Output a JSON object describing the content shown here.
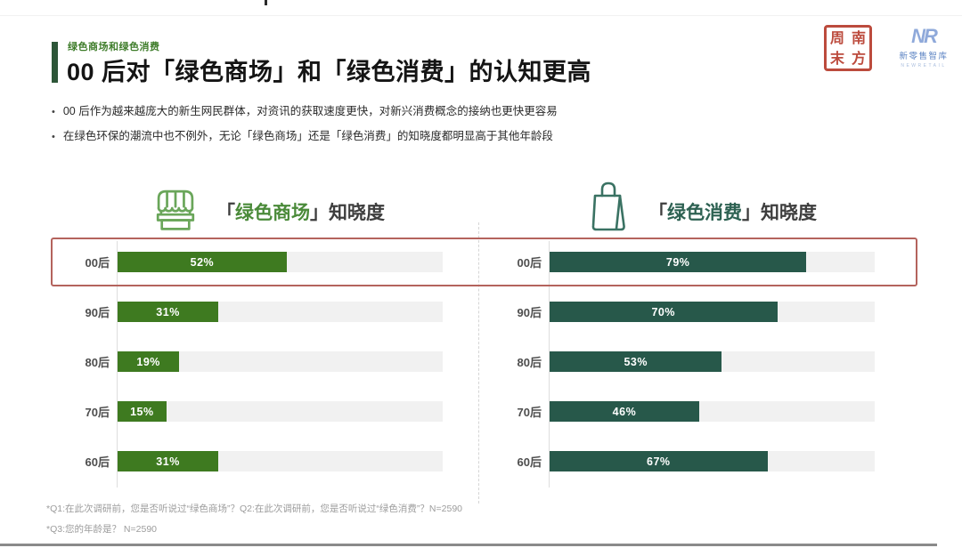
{
  "header": {
    "eyebrow": "绿色商场和绿色消费",
    "title": "00 后对「绿色商场」和「绿色消费」的认知更高",
    "bullets": [
      "00 后作为越来越庞大的新生网民群体，对资讯的获取速度更快，对新兴消费概念的接纳也更快更容易",
      "在绿色环保的潮流中也不例外，无论「绿色商场」还是「绿色消费」的知晓度都明显高于其他年龄段"
    ]
  },
  "logos": {
    "seal": {
      "chars": [
        "周",
        "南",
        "末",
        "方"
      ],
      "color": "#bc4b3d"
    },
    "newretail": {
      "monogram": "NR",
      "name": "新零售智库",
      "tagline": "NEWRETAIL",
      "color": "#6b8fc9"
    }
  },
  "chart_data": [
    {
      "type": "bar",
      "orientation": "horizontal",
      "icon": "storefront-icon",
      "title": "「绿色商场」知晓度",
      "title_prefix": "「",
      "title_highlight": "绿色商场",
      "title_suffix": "」知晓度",
      "categories": [
        "00后",
        "90后",
        "80后",
        "70后",
        "60后"
      ],
      "values": [
        52,
        31,
        19,
        15,
        31
      ],
      "unit": "%",
      "xlim": [
        0,
        100
      ],
      "bar_color": "#3e7a20",
      "track_color": "#f1f1f1",
      "legend": "none",
      "grid": "off"
    },
    {
      "type": "bar",
      "orientation": "horizontal",
      "icon": "shopping-bag-icon",
      "title": "「绿色消费」知晓度",
      "title_prefix": "「",
      "title_highlight": "绿色消费",
      "title_suffix": "」知晓度",
      "categories": [
        "00后",
        "90后",
        "80后",
        "70后",
        "60后"
      ],
      "values": [
        79,
        70,
        53,
        46,
        67
      ],
      "unit": "%",
      "xlim": [
        0,
        100
      ],
      "bar_color": "#27584a",
      "track_color": "#f1f1f1",
      "legend": "none",
      "grid": "off"
    }
  ],
  "highlight": {
    "row": "00后",
    "border_color": "#b4635d"
  },
  "footnotes": [
    "*Q1:在此次调研前，您是否听说过“绿色商场”？Q2:在此次调研前，您是否听说过“绿色消费”？N=2590",
    "*Q3:您的年龄是？ N=2590"
  ]
}
